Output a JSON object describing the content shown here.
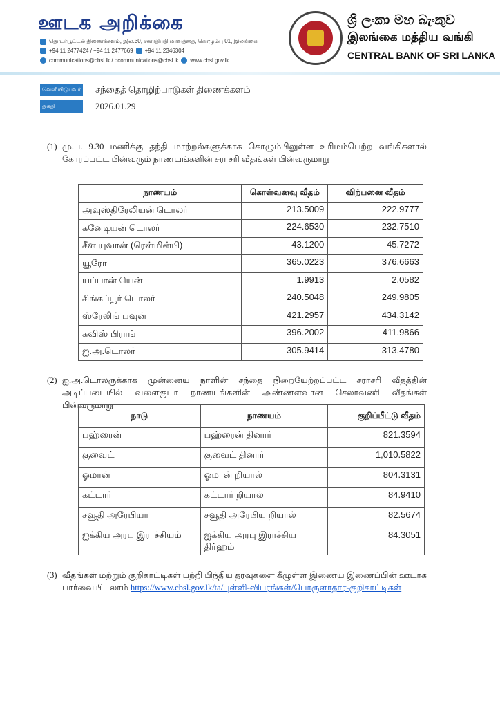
{
  "header": {
    "logo_text": "ஊடக அறிக்கை",
    "address": "தொடர்பூட்டல் திணைக்களம், இல.30, சனாதிபதி மாவத்தை, கொழும்பு 01, இலங்கை",
    "phone": "+94 11 2477424 / +94 11 2477669",
    "fax": "+94 11  2346304",
    "email": "communications@cbsl.lk / dcommunications@cbsl.lk",
    "website": "www.cbsl.gov.lk",
    "bank_sinhala": "ශ්‍රී ලංකා මහ බැංකුව",
    "bank_tamil": "இலங்கை மத்திய வங்கி",
    "bank_english": "CENTRAL BANK OF SRI LANKA",
    "brand_color": "#1f3c8c"
  },
  "meta": {
    "issuer_label": "வெளியிடுபவர்",
    "issuer": "சந்தைத் தொழிற்பாடுகள் திணைக்களம்",
    "date_label": "திகதி",
    "date": "2026.01.29"
  },
  "para1": {
    "num": "(1)",
    "text": "மு.ப. 9.30 மணிக்கு தந்தி மாற்றல்களுக்காக கொழும்பிலுள்ள உரிமம்பெற்ற வங்கிகளால் கோரப்பட்ட பின்வரும் நாணயங்களின் சராசரி வீதங்கள் பின்வருமாறு"
  },
  "table1": {
    "headers": [
      "நாணயம்",
      "கொள்வனவு வீதம்",
      "விற்பனை வீதம்"
    ],
    "rows": [
      [
        "அவுஸ்திரேலியன் டொலர்",
        "213.5009",
        "222.9777"
      ],
      [
        "கனேடியன் டொலர்",
        "224.6530",
        "232.7510"
      ],
      [
        "சீன யுவான் (ரென்மின்பி)",
        "43.1200",
        "45.7272"
      ],
      [
        "யூரோ",
        "365.0223",
        "376.6663"
      ],
      [
        "யப்பான் யென்",
        "1.9913",
        "2.0582"
      ],
      [
        "சிங்கப்பூர் டொலர்",
        "240.5048",
        "249.9805"
      ],
      [
        "ஸ்ரேலிங் பவுன்",
        "421.2957",
        "434.3142"
      ],
      [
        "சுவிஸ் பிராங்",
        "396.2002",
        "411.9866"
      ],
      [
        "ஐ.அ.டொலர்",
        "305.9414",
        "313.4780"
      ]
    ]
  },
  "para2": {
    "num": "(2)",
    "text": "ஐ.அ.டொலருக்காக முன்னைய நாளின் சந்தை நிறையேற்றப்பட்ட சராசரி வீதத்தின் அடிப்படையில் வளைகுடா நாணயங்களின் அண்ணளவான செலாவணி வீதங்கள் பின்வருமாறு"
  },
  "table2": {
    "headers": [
      "நாடு",
      "நாணயம்",
      "குறிப்பீட்டு வீதம்"
    ],
    "rows": [
      [
        "பஹ்ரைன்",
        "பஹ்ரைன் தினார்",
        "821.3594"
      ],
      [
        "குவைட்",
        "குவைட் தினார்",
        "1,010.5822"
      ],
      [
        "ஓமான்",
        "ஓமான் றியால்",
        "804.3131"
      ],
      [
        "கட்டார்",
        "கட்டார் றியால்",
        "84.9410"
      ],
      [
        "சவூதி அரேபியா",
        "சவூதி அரேபிய றியால்",
        "82.5674"
      ],
      [
        "ஐக்கிய அரபு இராச்சியம்",
        "ஐக்கிய அரபு இராச்சிய திர்ஹம்",
        "84.3051"
      ]
    ]
  },
  "para3": {
    "num": "(3)",
    "text": "வீதங்கள் மற்றும் குறிகாட்டிகள் பற்றி பிந்திய தரவுகளை கீழுள்ள இணைய இணைப்பின் ஊடாக பார்வையிடலாம்",
    "link": "https://www.cbsl.gov.lk/ta/புள்ளி-விபரங்கள்/பொருளாதார-குறிகாட்டிகள்"
  }
}
